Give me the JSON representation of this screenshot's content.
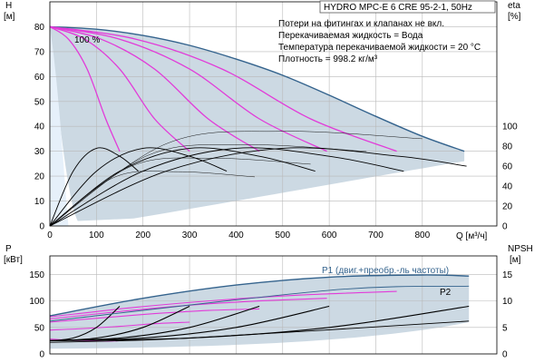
{
  "chart_data": [
    {
      "type": "line",
      "title": "HYDRO MPC-E 6 CRE 95-2-1, 50Hz",
      "notes": [
        "Потери на фитингах и клапанах не вкл.",
        "Перекачиваемая жидкость = Вода",
        "Температура перекачиваемой жидкости = 20 °C",
        "Плотность = 998.2 кг/м³"
      ],
      "speed_label": "100 %",
      "xlabel": "Q [м³/ч]",
      "xticks": [
        0,
        100,
        200,
        300,
        400,
        500,
        600,
        700,
        800
      ],
      "xlim": [
        0,
        960
      ],
      "ylabel_left": [
        "H",
        "[м]"
      ],
      "yticks_left": [
        0,
        10,
        20,
        30,
        40,
        50,
        60,
        70,
        80
      ],
      "ylim_left": [
        0,
        90
      ],
      "ylabel_right": [
        "eta",
        "[%]"
      ],
      "yticks_right": [
        0,
        20,
        40,
        60,
        80,
        100
      ],
      "ylim_right": [
        0,
        225
      ],
      "grid": true,
      "head_curve_max_flow": [
        150,
        300,
        450,
        595,
        745
      ],
      "series": [
        {
          "role": "envelope",
          "color": "#34638d",
          "x": [
            0,
            100,
            200,
            300,
            400,
            500,
            600,
            700,
            800,
            890
          ],
          "y": [
            80,
            79,
            76.5,
            72.5,
            67,
            60.5,
            52.5,
            44,
            36,
            30
          ]
        },
        {
          "role": "head",
          "color": "#e23bd9",
          "x": [
            0,
            40,
            80,
            120,
            150
          ],
          "y": [
            80,
            75,
            63,
            43,
            30
          ]
        },
        {
          "role": "head",
          "color": "#e23bd9",
          "x": [
            0,
            75,
            150,
            225,
            300
          ],
          "y": [
            80,
            75,
            63,
            43,
            30
          ]
        },
        {
          "role": "head",
          "color": "#e23bd9",
          "x": [
            0,
            110,
            225,
            340,
            450
          ],
          "y": [
            80,
            75,
            63,
            43,
            30
          ]
        },
        {
          "role": "head",
          "color": "#e23bd9",
          "x": [
            0,
            150,
            300,
            450,
            595
          ],
          "y": [
            80,
            75,
            63,
            43,
            30
          ]
        },
        {
          "role": "head",
          "color": "#e23bd9",
          "x": [
            0,
            185,
            370,
            560,
            745
          ],
          "y": [
            80,
            75,
            63,
            43,
            30
          ]
        },
        {
          "role": "efficiency",
          "color": "#000000",
          "x": [
            0,
            50,
            100,
            150,
            190
          ],
          "y": [
            0,
            55,
            78,
            70,
            55
          ]
        },
        {
          "role": "efficiency",
          "color": "#000000",
          "x": [
            0,
            100,
            200,
            300,
            380
          ],
          "y": [
            0,
            55,
            78,
            70,
            55
          ]
        },
        {
          "role": "efficiency",
          "color": "#000000",
          "x": [
            0,
            150,
            300,
            450,
            570
          ],
          "y": [
            0,
            55,
            78,
            70,
            55
          ]
        },
        {
          "role": "efficiency",
          "color": "#000000",
          "x": [
            0,
            200,
            400,
            600,
            760
          ],
          "y": [
            0,
            55,
            78,
            70,
            55
          ]
        },
        {
          "role": "efficiency",
          "color": "#000000",
          "x": [
            0,
            250,
            500,
            750,
            895
          ],
          "y": [
            0,
            55,
            78,
            70,
            60
          ]
        }
      ]
    },
    {
      "type": "line",
      "xlim": [
        0,
        960
      ],
      "ylabel_left": [
        "P",
        "[кВт]"
      ],
      "yticks_left": [
        0,
        50,
        100,
        150
      ],
      "ylim_left": [
        0,
        185
      ],
      "ylabel_right": [
        "NPSH",
        "[м]"
      ],
      "yticks_right": [
        0,
        5,
        10,
        15
      ],
      "ylim_right": [
        0,
        18.5
      ],
      "grid": true,
      "annotations": [
        "P1 (двиг.+преобр.-ль частоты)",
        "P2"
      ],
      "series": [
        {
          "role": "power-envelope",
          "color": "#34638d",
          "x": [
            0,
            200,
            400,
            600,
            800,
            900
          ],
          "y": [
            72,
            105,
            130,
            145,
            149,
            147
          ]
        },
        {
          "role": "power-p1",
          "color": "#e23bd9",
          "x": [
            0,
            40,
            80,
            120,
            150
          ],
          "y": [
            28,
            26,
            25,
            24,
            25
          ]
        },
        {
          "role": "power-p1",
          "color": "#e23bd9",
          "x": [
            0,
            75,
            150,
            225,
            300
          ],
          "y": [
            45,
            48,
            52,
            57,
            60
          ]
        },
        {
          "role": "power-p1",
          "color": "#e23bd9",
          "x": [
            0,
            110,
            225,
            340,
            450
          ],
          "y": [
            60,
            68,
            76,
            82,
            85
          ]
        },
        {
          "role": "power-p1",
          "color": "#e23bd9",
          "x": [
            0,
            150,
            300,
            450,
            595
          ],
          "y": [
            66,
            80,
            92,
            100,
            105
          ]
        },
        {
          "role": "power-p1",
          "color": "#e23bd9",
          "x": [
            0,
            185,
            370,
            560,
            745
          ],
          "y": [
            70,
            88,
            102,
            112,
            118
          ]
        },
        {
          "role": "npsh",
          "color": "#000000",
          "x": [
            0,
            50,
            100,
            150
          ],
          "y": [
            2.5,
            3,
            5,
            9
          ]
        },
        {
          "role": "npsh",
          "color": "#000000",
          "x": [
            0,
            100,
            200,
            300
          ],
          "y": [
            2.5,
            3,
            5,
            9
          ]
        },
        {
          "role": "npsh",
          "color": "#000000",
          "x": [
            0,
            150,
            300,
            450
          ],
          "y": [
            2.5,
            3,
            5,
            9
          ]
        },
        {
          "role": "npsh",
          "color": "#000000",
          "x": [
            0,
            200,
            400,
            600
          ],
          "y": [
            2.5,
            3,
            5,
            9
          ]
        },
        {
          "role": "npsh",
          "color": "#000000",
          "x": [
            0,
            300,
            600,
            900
          ],
          "y": [
            2.5,
            3,
            5,
            9
          ]
        }
      ]
    }
  ]
}
